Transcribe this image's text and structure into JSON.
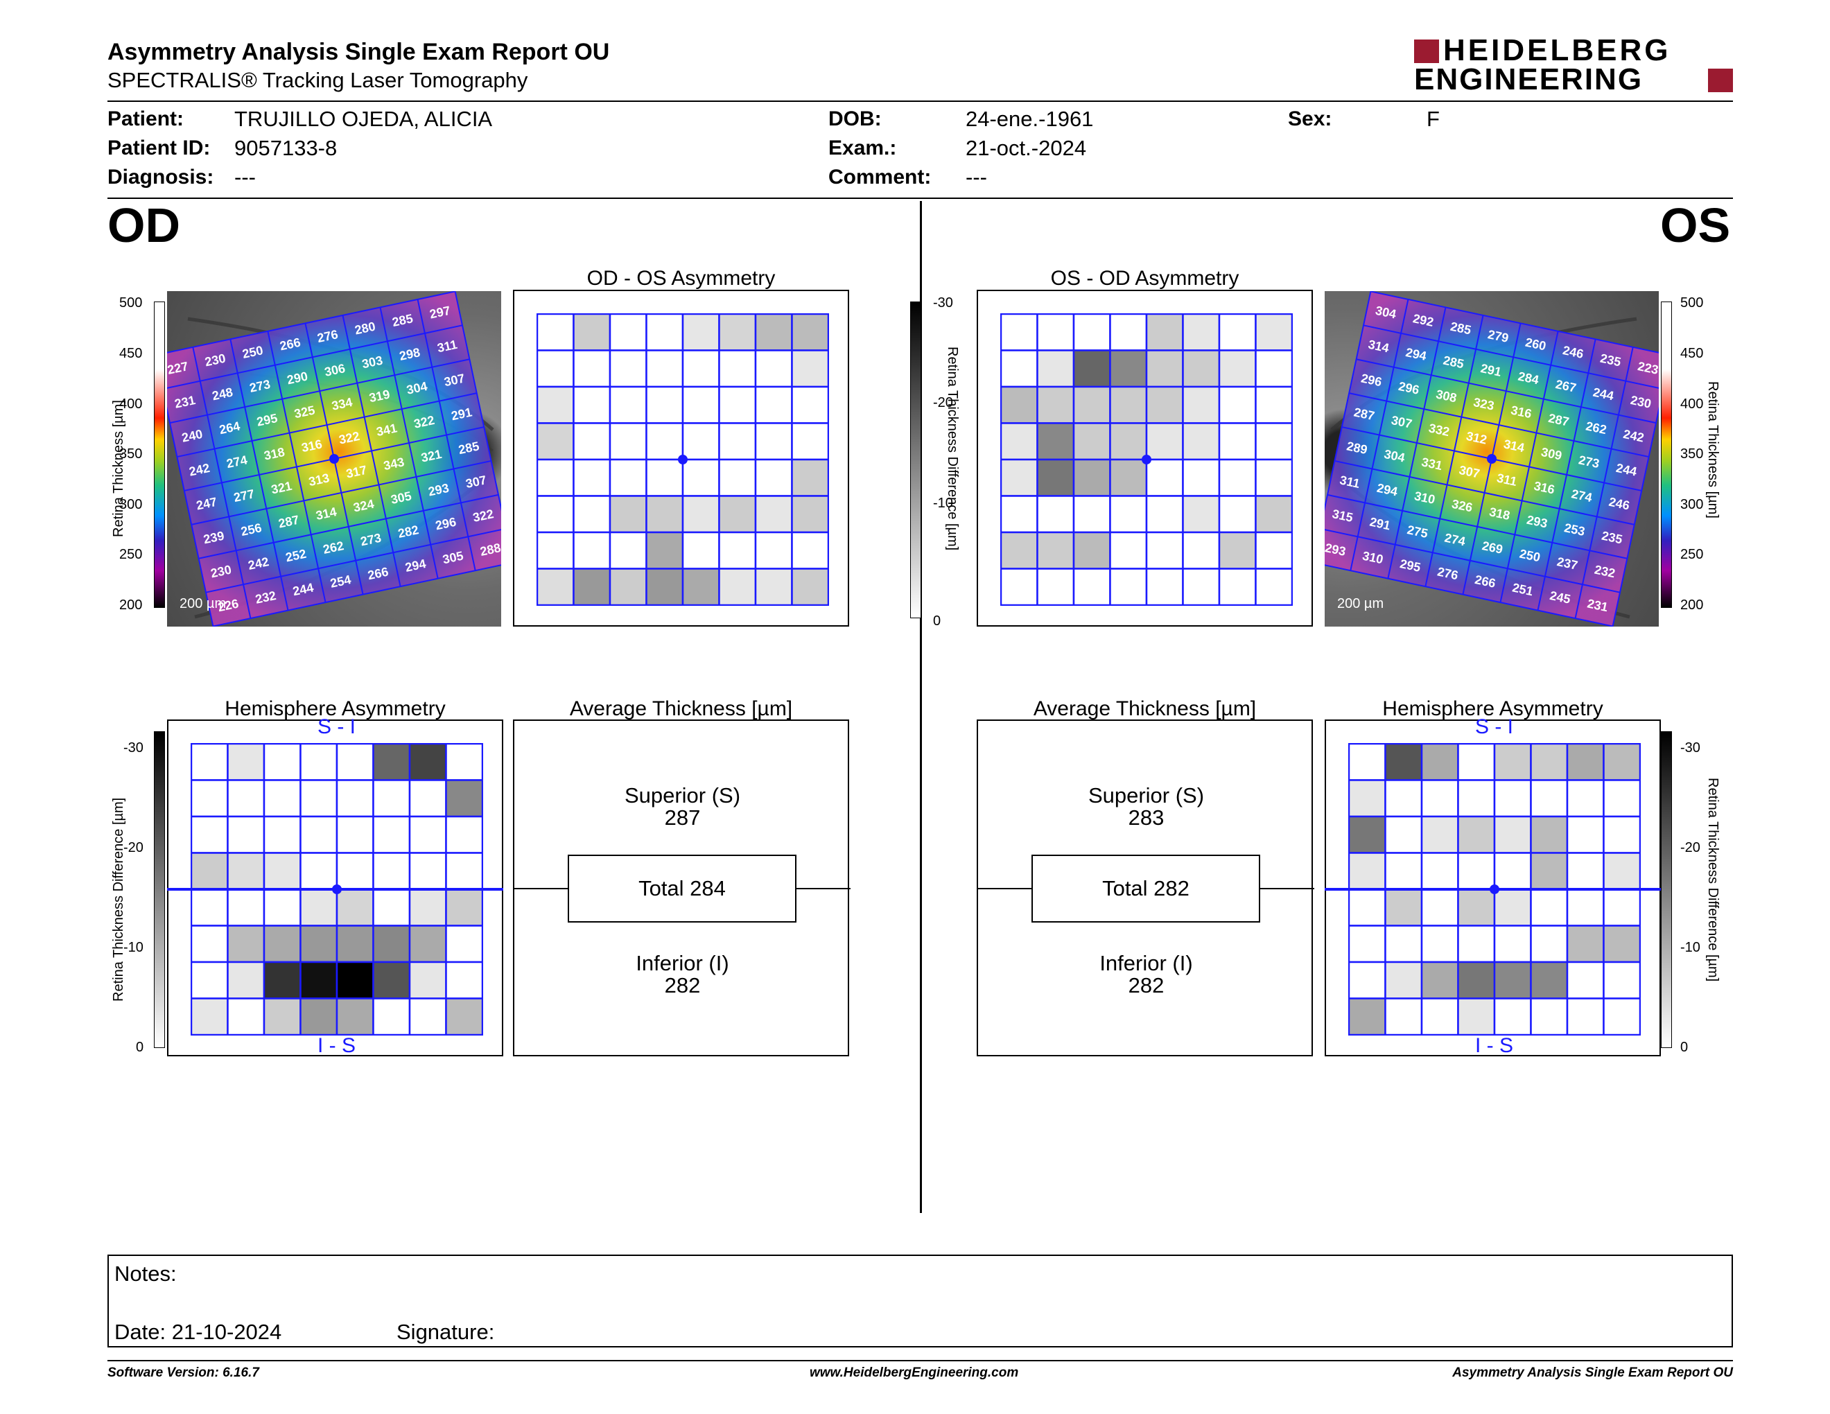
{
  "header": {
    "title": "Asymmetry Analysis Single Exam Report OU",
    "subtitle": "SPECTRALIS® Tracking Laser Tomography",
    "logo_line1": "HEIDELBERG",
    "logo_line2": "ENGINEERING",
    "brand_color": "#9b1b30"
  },
  "patient": {
    "patient_label": "Patient:",
    "patient_value": "TRUJILLO OJEDA, ALICIA",
    "id_label": "Patient ID:",
    "id_value": "9057133-8",
    "diag_label": "Diagnosis:",
    "diag_value": "---",
    "dob_label": "DOB:",
    "dob_value": "24-ene.-1961",
    "exam_label": "Exam.:",
    "exam_value": "21-oct.-2024",
    "comment_label": "Comment:",
    "comment_value": "---",
    "sex_label": "Sex:",
    "sex_value": "F"
  },
  "od": {
    "eye_label": "OD",
    "asym_title": "OD - OS Asymmetry",
    "hemi_title": "Hemisphere Asymmetry",
    "avg_title": "Average Thickness [µm]",
    "superior_label": "Superior (S)",
    "superior_value": "287",
    "total_label": "Total 284",
    "inferior_label": "Inferior (I)",
    "inferior_value": "282",
    "hemi_top": "S - I",
    "hemi_bottom": "I - S",
    "scale_bar": "200 µm",
    "thickness": [
      [
        227,
        230,
        250,
        266,
        276,
        280,
        285,
        297
      ],
      [
        231,
        248,
        273,
        290,
        306,
        303,
        298,
        311
      ],
      [
        240,
        264,
        295,
        325,
        334,
        319,
        304,
        307
      ],
      [
        242,
        274,
        318,
        316,
        322,
        341,
        322,
        291
      ],
      [
        247,
        277,
        321,
        313,
        317,
        343,
        321,
        285
      ],
      [
        239,
        256,
        287,
        314,
        324,
        305,
        293,
        307
      ],
      [
        230,
        242,
        252,
        262,
        273,
        282,
        296,
        322
      ],
      [
        226,
        232,
        244,
        254,
        266,
        294,
        305,
        288
      ]
    ],
    "asym_gray": [
      [
        0,
        6,
        0,
        0,
        3,
        5,
        8,
        8
      ],
      [
        0,
        0,
        0,
        0,
        0,
        0,
        0,
        3
      ],
      [
        3,
        0,
        0,
        0,
        0,
        0,
        0,
        0
      ],
      [
        5,
        0,
        0,
        0,
        0,
        0,
        0,
        0
      ],
      [
        0,
        0,
        0,
        0,
        0,
        0,
        0,
        6
      ],
      [
        0,
        0,
        6,
        6,
        3,
        6,
        3,
        6
      ],
      [
        0,
        0,
        0,
        10,
        0,
        0,
        0,
        0
      ],
      [
        4,
        12,
        6,
        12,
        10,
        3,
        3,
        6
      ]
    ],
    "hemi_gray": [
      [
        0,
        3,
        0,
        0,
        0,
        18,
        22,
        0
      ],
      [
        0,
        0,
        0,
        0,
        0,
        0,
        0,
        14
      ],
      [
        0,
        0,
        0,
        0,
        0,
        0,
        0,
        0
      ],
      [
        6,
        4,
        3,
        0,
        0,
        0,
        0,
        0
      ],
      [
        0,
        0,
        0,
        3,
        5,
        0,
        3,
        6
      ],
      [
        0,
        8,
        10,
        12,
        12,
        14,
        10,
        0
      ],
      [
        0,
        3,
        24,
        28,
        30,
        20,
        3,
        0
      ],
      [
        3,
        0,
        6,
        12,
        10,
        0,
        0,
        8
      ]
    ]
  },
  "os": {
    "eye_label": "OS",
    "asym_title": "OS - OD Asymmetry",
    "hemi_title": "Hemisphere Asymmetry",
    "avg_title": "Average Thickness [µm]",
    "superior_label": "Superior (S)",
    "superior_value": "283",
    "total_label": "Total 282",
    "inferior_label": "Inferior (I)",
    "inferior_value": "282",
    "hemi_top": "S - I",
    "hemi_bottom": "I - S",
    "scale_bar": "200 µm",
    "thickness": [
      [
        304,
        292,
        285,
        279,
        260,
        246,
        235,
        223
      ],
      [
        314,
        294,
        285,
        291,
        284,
        267,
        244,
        230
      ],
      [
        296,
        296,
        308,
        323,
        316,
        287,
        262,
        242
      ],
      [
        287,
        307,
        332,
        312,
        314,
        309,
        273,
        244
      ],
      [
        289,
        304,
        331,
        307,
        311,
        316,
        274,
        246
      ],
      [
        311,
        294,
        310,
        326,
        318,
        293,
        253,
        235
      ],
      [
        315,
        291,
        275,
        274,
        269,
        250,
        237,
        232
      ],
      [
        293,
        310,
        295,
        276,
        266,
        251,
        245,
        231
      ]
    ],
    "asym_gray": [
      [
        0,
        0,
        0,
        0,
        6,
        3,
        0,
        3
      ],
      [
        0,
        3,
        18,
        14,
        6,
        6,
        3,
        0
      ],
      [
        8,
        6,
        6,
        6,
        6,
        3,
        0,
        0
      ],
      [
        3,
        14,
        6,
        6,
        3,
        3,
        0,
        0
      ],
      [
        3,
        16,
        10,
        8,
        0,
        0,
        0,
        0
      ],
      [
        0,
        0,
        0,
        0,
        0,
        3,
        0,
        6
      ],
      [
        6,
        6,
        8,
        0,
        0,
        0,
        6,
        0
      ],
      [
        0,
        0,
        0,
        0,
        0,
        0,
        0,
        0
      ]
    ],
    "hemi_gray": [
      [
        0,
        20,
        10,
        0,
        6,
        6,
        10,
        8
      ],
      [
        3,
        0,
        0,
        0,
        0,
        0,
        0,
        0
      ],
      [
        16,
        0,
        3,
        6,
        3,
        8,
        0,
        0
      ],
      [
        3,
        0,
        0,
        0,
        0,
        8,
        0,
        3
      ],
      [
        0,
        6,
        0,
        6,
        3,
        0,
        0,
        0
      ],
      [
        0,
        0,
        0,
        0,
        0,
        0,
        8,
        8
      ],
      [
        0,
        3,
        10,
        16,
        14,
        14,
        0,
        0
      ],
      [
        10,
        0,
        0,
        3,
        0,
        0,
        0,
        0
      ]
    ]
  },
  "scales": {
    "thickness_label": "Retina Thickness [µm]",
    "thickness_ticks": [
      "500",
      "450",
      "400",
      "350",
      "300",
      "250",
      "200"
    ],
    "diff_label": "Retina Thickness Difference [µm]",
    "diff_ticks": [
      "-30",
      "-20",
      "-10",
      "0"
    ]
  },
  "notes": {
    "notes_label": "Notes:",
    "date_label": "Date: 21-10-2024",
    "signature_label": "Signature:"
  },
  "footer": {
    "software": "Software Version: 6.16.7",
    "website": "www.HeidelbergEngineering.com",
    "report": "Asymmetry Analysis Single Exam Report OU"
  }
}
